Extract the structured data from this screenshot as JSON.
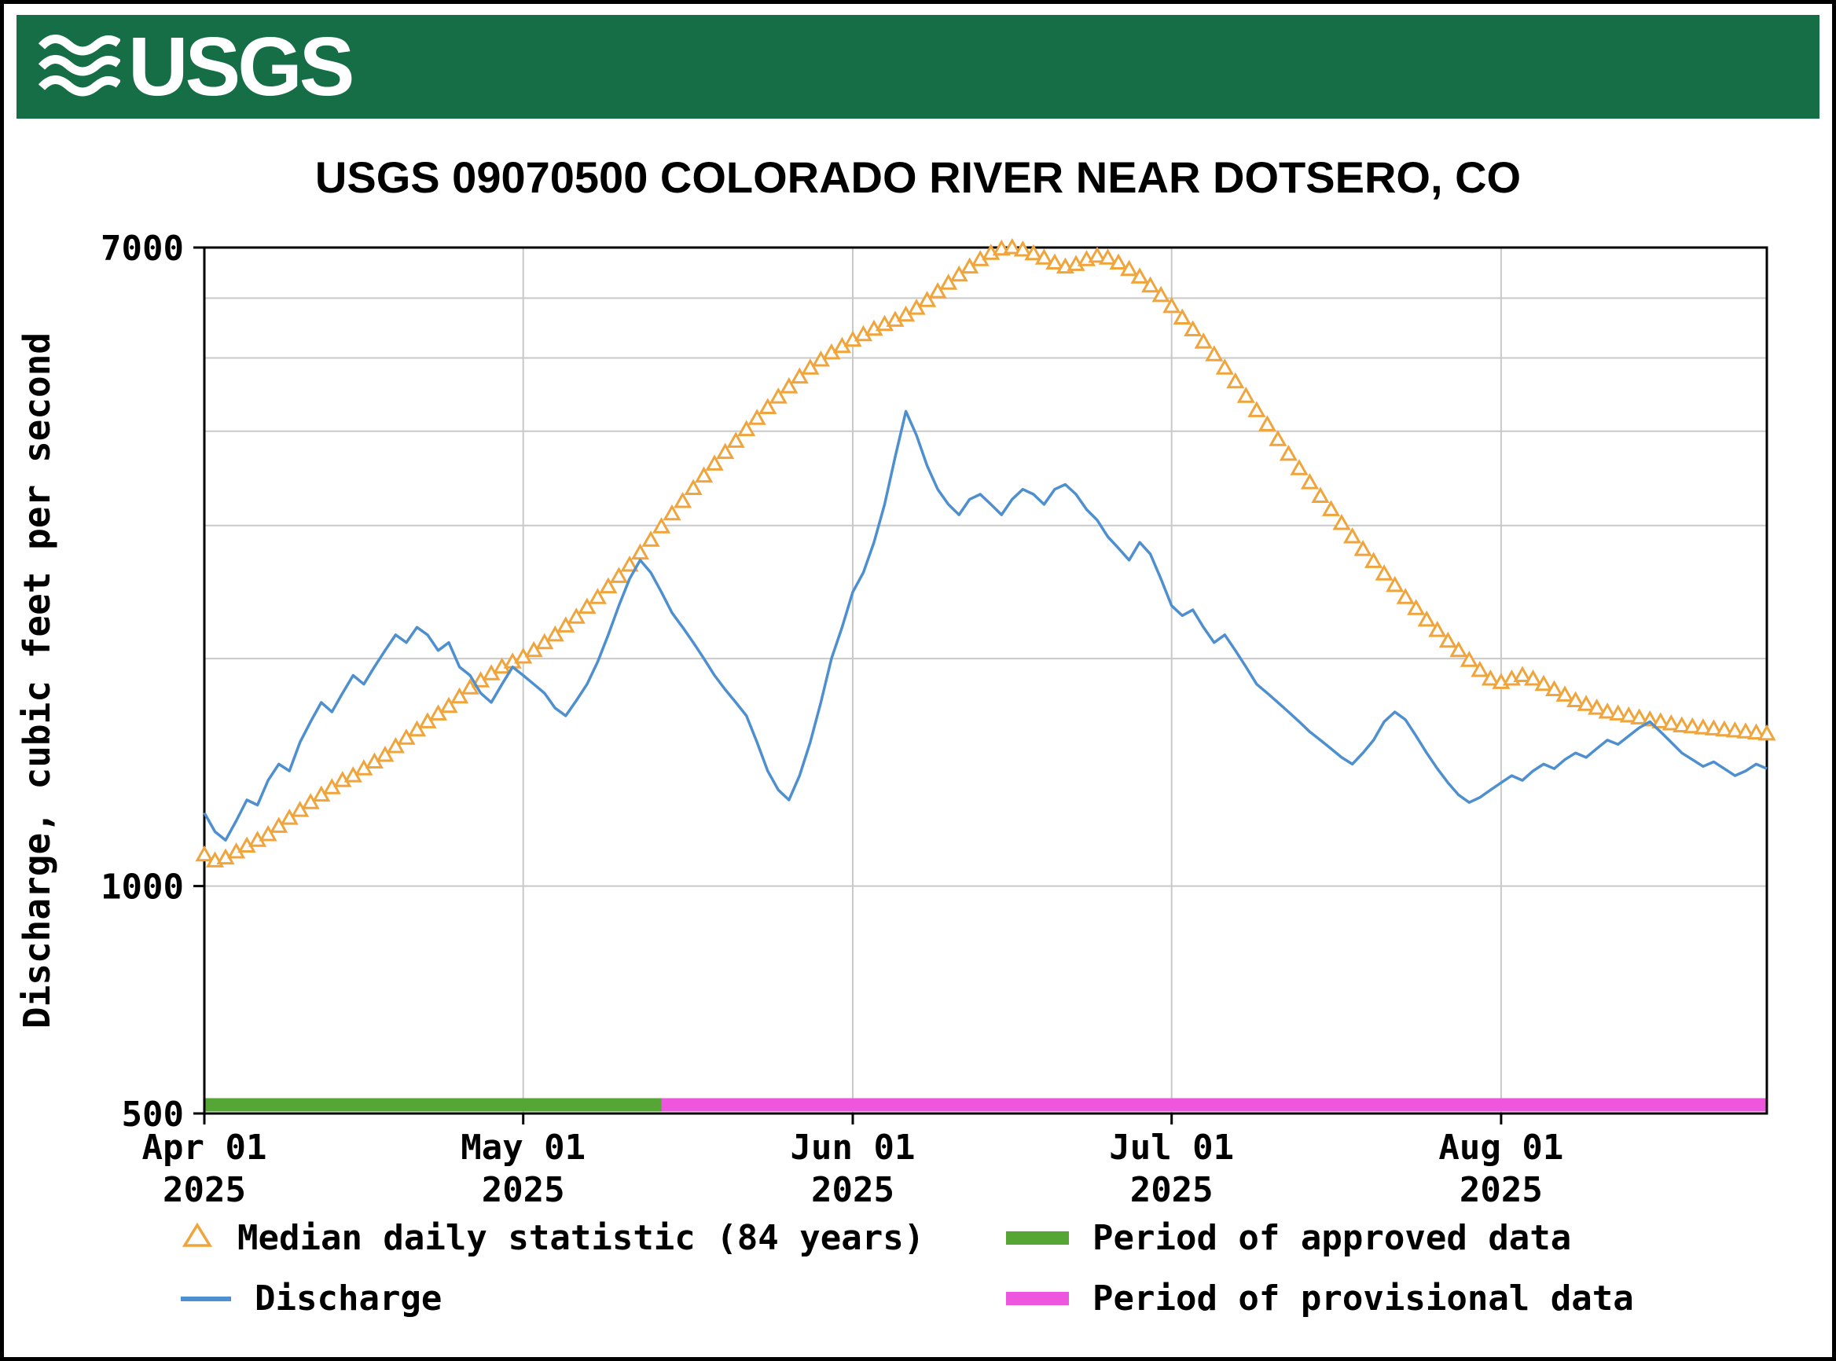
{
  "header": {
    "logo_text": "USGS",
    "bg_color": "#156e46"
  },
  "title": "USGS 09070500 COLORADO RIVER NEAR DOTSERO, CO",
  "chart_data": {
    "type": "line",
    "title": "USGS 09070500 COLORADO RIVER NEAR DOTSERO, CO",
    "xlabel": "",
    "ylabel": "Discharge, cubic feet per second",
    "y_scale": "log",
    "ylim": [
      500,
      7000
    ],
    "y_tick_labels": [
      7000,
      1000,
      500
    ],
    "y_gridlines": [
      1000,
      2000,
      3000,
      4000,
      5000,
      6000
    ],
    "x_unit": "days since 2025-04-01",
    "x_range": [
      0,
      147
    ],
    "x_ticks": [
      {
        "day": 0,
        "label": "Apr 01",
        "year": "2025"
      },
      {
        "day": 30,
        "label": "May 01",
        "year": "2025"
      },
      {
        "day": 61,
        "label": "Jun 01",
        "year": "2025"
      },
      {
        "day": 91,
        "label": "Jul 01",
        "year": "2025"
      },
      {
        "day": 122,
        "label": "Aug 01",
        "year": "2025"
      }
    ],
    "grid": true,
    "legend_position": "bottom",
    "series": [
      {
        "name": "Median daily statistic (84 years)",
        "marker": "triangle",
        "color": "#f0a43c",
        "values": [
          1100,
          1080,
          1090,
          1110,
          1130,
          1150,
          1170,
          1200,
          1230,
          1260,
          1290,
          1320,
          1350,
          1380,
          1400,
          1430,
          1460,
          1490,
          1530,
          1570,
          1610,
          1650,
          1690,
          1730,
          1780,
          1830,
          1870,
          1910,
          1950,
          1980,
          2010,
          2050,
          2100,
          2150,
          2210,
          2270,
          2340,
          2410,
          2490,
          2570,
          2660,
          2760,
          2870,
          2990,
          3110,
          3230,
          3360,
          3490,
          3620,
          3750,
          3880,
          4020,
          4160,
          4300,
          4440,
          4580,
          4720,
          4850,
          4970,
          5080,
          5180,
          5280,
          5370,
          5460,
          5540,
          5610,
          5700,
          5820,
          5960,
          6120,
          6280,
          6440,
          6600,
          6750,
          6880,
          6970,
          7000,
          6950,
          6870,
          6780,
          6680,
          6600,
          6650,
          6750,
          6820,
          6780,
          6680,
          6550,
          6400,
          6230,
          6050,
          5850,
          5650,
          5450,
          5250,
          5050,
          4850,
          4650,
          4450,
          4260,
          4080,
          3900,
          3730,
          3570,
          3420,
          3280,
          3150,
          3020,
          2900,
          2790,
          2690,
          2590,
          2500,
          2410,
          2330,
          2250,
          2180,
          2110,
          2050,
          1990,
          1930,
          1880,
          1860,
          1880,
          1900,
          1880,
          1850,
          1820,
          1790,
          1760,
          1740,
          1720,
          1700,
          1690,
          1680,
          1670,
          1660,
          1650,
          1640,
          1630,
          1625,
          1620,
          1615,
          1610,
          1605,
          1600,
          1595,
          1590
        ]
      },
      {
        "name": "Discharge",
        "marker": "line",
        "color": "#4e8fd0",
        "values": [
          1250,
          1180,
          1150,
          1220,
          1300,
          1280,
          1380,
          1450,
          1420,
          1550,
          1650,
          1750,
          1700,
          1800,
          1900,
          1850,
          1950,
          2050,
          2150,
          2100,
          2200,
          2150,
          2050,
          2100,
          1950,
          1900,
          1800,
          1750,
          1850,
          1950,
          1900,
          1850,
          1800,
          1720,
          1680,
          1760,
          1850,
          1980,
          2150,
          2350,
          2550,
          2700,
          2600,
          2450,
          2300,
          2200,
          2100,
          2000,
          1900,
          1820,
          1750,
          1680,
          1550,
          1420,
          1340,
          1300,
          1400,
          1550,
          1750,
          2000,
          2200,
          2450,
          2600,
          2850,
          3200,
          3700,
          4250,
          3950,
          3600,
          3350,
          3200,
          3100,
          3250,
          3300,
          3200,
          3100,
          3250,
          3350,
          3300,
          3200,
          3350,
          3400,
          3300,
          3150,
          3050,
          2900,
          2800,
          2700,
          2850,
          2750,
          2550,
          2350,
          2280,
          2320,
          2200,
          2100,
          2150,
          2050,
          1950,
          1850,
          1800,
          1750,
          1700,
          1650,
          1600,
          1560,
          1520,
          1480,
          1450,
          1500,
          1560,
          1650,
          1700,
          1660,
          1580,
          1500,
          1430,
          1370,
          1320,
          1290,
          1310,
          1340,
          1370,
          1400,
          1380,
          1420,
          1450,
          1430,
          1470,
          1500,
          1480,
          1520,
          1560,
          1540,
          1580,
          1620,
          1650,
          1600,
          1550,
          1500,
          1470,
          1440,
          1460,
          1430,
          1400,
          1420,
          1450,
          1430
        ]
      }
    ],
    "periods": [
      {
        "id": "approved",
        "name": "Period of approved data",
        "color": "#56a636",
        "start_day": 0,
        "end_day": 43
      },
      {
        "id": "provisional",
        "name": "Period of provisional data",
        "color": "#ee57dd",
        "start_day": 43,
        "end_day": 147
      }
    ]
  },
  "legend": {
    "items": [
      {
        "id": "median",
        "label": "Median daily statistic (84 years)",
        "marker": "triangle",
        "color": "#f0a43c"
      },
      {
        "id": "approved",
        "label": "Period of approved data",
        "marker": "bar",
        "color": "#56a636"
      },
      {
        "id": "discharge",
        "label": "Discharge",
        "marker": "line",
        "color": "#4e8fd0"
      },
      {
        "id": "provisional",
        "label": "Period of provisional data",
        "marker": "bar",
        "color": "#ee57dd"
      }
    ]
  }
}
